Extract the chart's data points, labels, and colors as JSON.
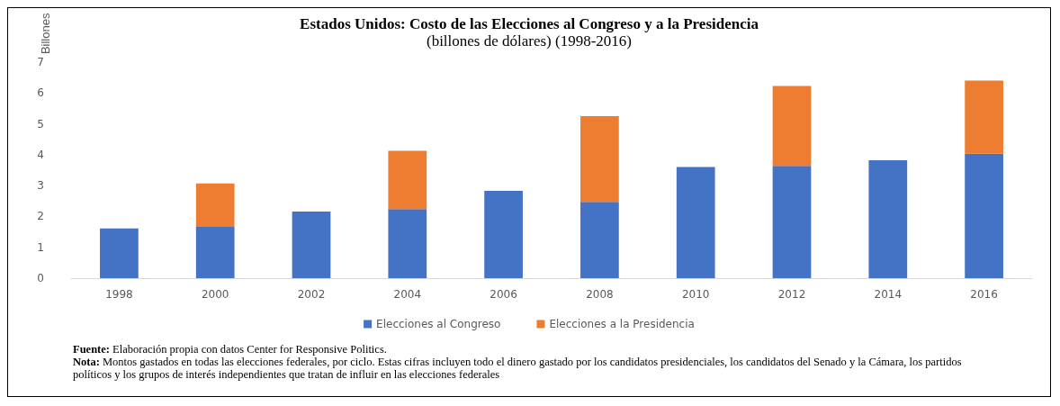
{
  "chart_data": {
    "type": "bar",
    "stacked": true,
    "title": "Estados Unidos: Costo de las Elecciones al Congreso y a la Presidencia",
    "subtitle": "(billones de dólares) (1998-2016)",
    "ylabel": "Billones",
    "categories": [
      "1998",
      "2000",
      "2002",
      "2004",
      "2006",
      "2008",
      "2010",
      "2012",
      "2014",
      "2016"
    ],
    "series": [
      {
        "name": "Elecciones al Congreso",
        "color": "#4472c4",
        "values": [
          1.61,
          1.66,
          2.16,
          2.24,
          2.83,
          2.47,
          3.6,
          3.64,
          3.82,
          4.03
        ]
      },
      {
        "name": "Elecciones a la Presidencia",
        "color": "#ed7d31",
        "values": [
          null,
          1.41,
          null,
          1.89,
          null,
          2.78,
          null,
          2.59,
          null,
          2.37
        ]
      }
    ],
    "ylim": [
      0,
      7
    ],
    "yticks": [
      0,
      1,
      2,
      3,
      4,
      5,
      6,
      7
    ],
    "grid": false,
    "legend": "bottom",
    "annotations": [
      "Fuente: Elaboración propia con datos Center for Responsive Politics.",
      "Nota: Montos gastados en todas las elecciones federales, por ciclo. Estas cifras incluyen todo el dinero gastado por los candidatos presidenciales, los candidatos del Senado y la Cámara, los partidos políticos y los grupos de interés independientes que tratan de influir en las elecciones federales"
    ]
  }
}
